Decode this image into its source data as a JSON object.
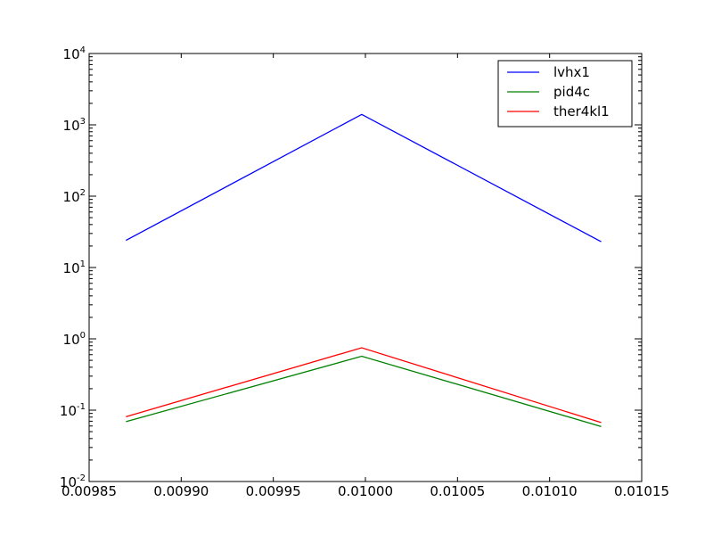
{
  "chart_data": {
    "type": "line",
    "title": "",
    "xlabel": "",
    "ylabel": "",
    "x_scale": "linear",
    "y_scale": "log",
    "xlim": [
      0.00985,
      0.01015
    ],
    "ylim": [
      0.01,
      10000
    ],
    "x_ticks": [
      "0.00985",
      "0.00990",
      "0.00995",
      "0.01000",
      "0.01005",
      "0.01010",
      "0.01015"
    ],
    "x_tick_values": [
      0.00985,
      0.0099,
      0.00995,
      0.01,
      0.01005,
      0.0101,
      0.01015
    ],
    "y_tick_exponents": [
      "-2",
      "-1",
      "0",
      "1",
      "2",
      "3",
      "4"
    ],
    "y_tick_base": "10",
    "grid": false,
    "legend_position": "top-right",
    "series": [
      {
        "name": "lvhx1",
        "color": "#0000ff",
        "points": [
          [
            0.00987,
            24
          ],
          [
            0.009998,
            1400
          ],
          [
            0.010128,
            23
          ]
        ]
      },
      {
        "name": "pid4c",
        "color": "#008000",
        "points": [
          [
            0.00987,
            0.069
          ],
          [
            0.009998,
            0.57
          ],
          [
            0.010128,
            0.059
          ]
        ]
      },
      {
        "name": "ther4kl1",
        "color": "#ff0000",
        "points": [
          [
            0.00987,
            0.081
          ],
          [
            0.009998,
            0.75
          ],
          [
            0.010128,
            0.067
          ]
        ]
      }
    ]
  }
}
